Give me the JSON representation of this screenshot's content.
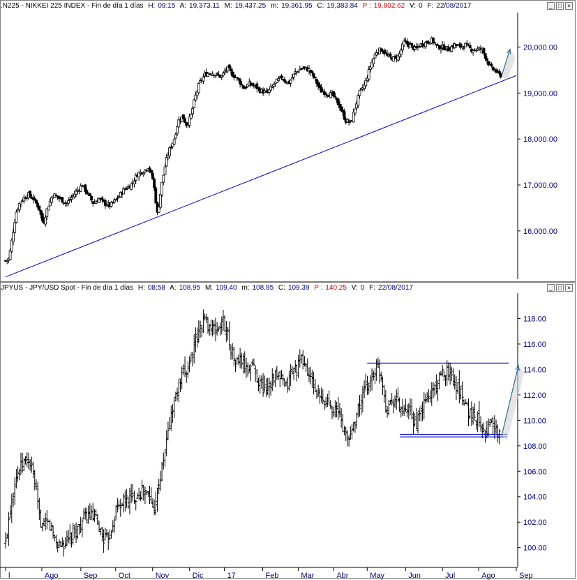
{
  "top_panel": {
    "title": ".N225 - NIKKEI 225 INDEX - Fin de día 1 días",
    "h_label": "H:",
    "h_value": "09:15",
    "a_label": "A:",
    "a_value": "19,373.11",
    "m_label": "M:",
    "m_value": "19,437.25",
    "lo_label": "m:",
    "lo_value": "19,361.95",
    "c_label": "C:",
    "c_value": "19,383.84",
    "p_label": "P :",
    "p_value": "19,802.62",
    "v_label": "V:",
    "v_value": "0",
    "f_label": "F:",
    "f_value": "22/08/2017"
  },
  "bottom_panel": {
    "title": "JPYUS - JPY/USD Spot - Fin de día 1 días",
    "h_label": "H:",
    "h_value": "08:58",
    "a_label": "A:",
    "a_value": "108.95",
    "m_label": "M:",
    "m_value": "109.40",
    "lo_label": "m:",
    "lo_value": "108.85",
    "c_label": "C:",
    "c_value": "109.39",
    "p_label": "P :",
    "p_value": "140.25",
    "v_label": "V:",
    "v_value": "0",
    "f_label": "F:",
    "f_value": "22/08/2017"
  },
  "window_buttons": {
    "minimize": "_",
    "maximize": "□",
    "close": "×"
  },
  "colors": {
    "axis_text": "#000080",
    "trend_line": "#0000c0",
    "arrow": "#2f6f8f",
    "candles": "#000000",
    "price_p": "#e00000"
  },
  "chart_data": [
    {
      "type": "candlestick",
      "title": ".N225 - NIKKEI 225 INDEX",
      "y_ticks": [
        16000,
        17000,
        18000,
        19000,
        20000
      ],
      "y_tick_labels": [
        "16,000.00",
        "17,000.00",
        "18,000.00",
        "19,000.00",
        "20,000.00"
      ],
      "ylim": [
        14950,
        20750
      ],
      "x_tick_labels": [
        "l",
        "Ago",
        "Sep",
        "Oct",
        "Nov",
        "Dic",
        "17",
        "Feb",
        "Mar",
        "Abr",
        "May",
        "Jun",
        "Jul",
        "Ago",
        "Sep"
      ],
      "x_ticks": [
        0,
        52,
        108,
        158,
        211,
        264,
        314,
        369,
        420,
        471,
        519,
        574,
        627,
        679,
        733
      ],
      "close_path": [
        [
          0,
          15350
        ],
        [
          5,
          15400
        ],
        [
          10,
          15900
        ],
        [
          15,
          16400
        ],
        [
          20,
          16600
        ],
        [
          25,
          16700
        ],
        [
          32,
          16800
        ],
        [
          40,
          16700
        ],
        [
          48,
          16500
        ],
        [
          54,
          16150
        ],
        [
          60,
          16500
        ],
        [
          68,
          16800
        ],
        [
          78,
          16700
        ],
        [
          88,
          16600
        ],
        [
          96,
          16750
        ],
        [
          104,
          16900
        ],
        [
          110,
          17000
        ],
        [
          118,
          16800
        ],
        [
          126,
          16600
        ],
        [
          134,
          16700
        ],
        [
          142,
          16600
        ],
        [
          150,
          16550
        ],
        [
          160,
          16700
        ],
        [
          170,
          16900
        ],
        [
          180,
          17000
        ],
        [
          190,
          17250
        ],
        [
          198,
          17300
        ],
        [
          205,
          17400
        ],
        [
          212,
          17100
        ],
        [
          218,
          16350
        ],
        [
          224,
          17000
        ],
        [
          230,
          17500
        ],
        [
          236,
          17800
        ],
        [
          242,
          18000
        ],
        [
          248,
          18400
        ],
        [
          254,
          18500
        ],
        [
          260,
          18300
        ],
        [
          266,
          18500
        ],
        [
          272,
          18900
        ],
        [
          278,
          19200
        ],
        [
          286,
          19400
        ],
        [
          294,
          19450
        ],
        [
          302,
          19400
        ],
        [
          310,
          19350
        ],
        [
          318,
          19550
        ],
        [
          326,
          19400
        ],
        [
          334,
          19300
        ],
        [
          342,
          19100
        ],
        [
          350,
          19200
        ],
        [
          358,
          19150
        ],
        [
          366,
          19050
        ],
        [
          376,
          19000
        ],
        [
          386,
          19200
        ],
        [
          396,
          19350
        ],
        [
          406,
          19200
        ],
        [
          416,
          19450
        ],
        [
          426,
          19550
        ],
        [
          436,
          19500
        ],
        [
          444,
          19300
        ],
        [
          452,
          19050
        ],
        [
          460,
          19000
        ],
        [
          470,
          18950
        ],
        [
          480,
          18700
        ],
        [
          488,
          18400
        ],
        [
          496,
          18350
        ],
        [
          502,
          18700
        ],
        [
          508,
          19000
        ],
        [
          516,
          19200
        ],
        [
          524,
          19600
        ],
        [
          532,
          19900
        ],
        [
          540,
          19950
        ],
        [
          548,
          19800
        ],
        [
          556,
          19750
        ],
        [
          564,
          19800
        ],
        [
          572,
          20100
        ],
        [
          580,
          20050
        ],
        [
          588,
          19950
        ],
        [
          596,
          20050
        ],
        [
          604,
          20100
        ],
        [
          612,
          20150
        ],
        [
          620,
          20000
        ],
        [
          628,
          20000
        ],
        [
          636,
          19950
        ],
        [
          644,
          20050
        ],
        [
          652,
          20000
        ],
        [
          660,
          20050
        ],
        [
          668,
          19950
        ],
        [
          676,
          19950
        ],
        [
          684,
          19950
        ],
        [
          690,
          19750
        ],
        [
          696,
          19550
        ],
        [
          702,
          19500
        ],
        [
          708,
          19400
        ],
        [
          712,
          19380
        ]
      ],
      "trend_line": [
        [
          0,
          15000
        ],
        [
          733,
          19380
        ]
      ],
      "arrow": [
        [
          712,
          19380
        ],
        [
          724,
          19950
        ]
      ]
    },
    {
      "type": "ohlc",
      "title": "JPYUS - JPY/USD Spot",
      "y_ticks": [
        100,
        102,
        104,
        106,
        108,
        110,
        112,
        114,
        116,
        118
      ],
      "y_tick_labels": [
        "100.00",
        "102.00",
        "104.00",
        "106.00",
        "108.00",
        "110.00",
        "112.00",
        "114.00",
        "116.00",
        "118.00"
      ],
      "ylim": [
        98.5,
        120.0
      ],
      "x_tick_labels": [
        "l",
        "Ago",
        "Sep",
        "Oct",
        "Nov",
        "Dic",
        "17",
        "Feb",
        "Mar",
        "Abr",
        "May",
        "Jun",
        "Jul",
        "Ago",
        "Sep"
      ],
      "x_ticks": [
        0,
        52,
        108,
        158,
        211,
        264,
        314,
        369,
        420,
        471,
        519,
        574,
        627,
        679,
        733
      ],
      "close_path": [
        [
          0,
          100.3
        ],
        [
          6,
          103.0
        ],
        [
          12,
          105.0
        ],
        [
          18,
          106.0
        ],
        [
          24,
          106.5
        ],
        [
          30,
          107.0
        ],
        [
          36,
          106.5
        ],
        [
          42,
          105.0
        ],
        [
          48,
          102.5
        ],
        [
          54,
          101.5
        ],
        [
          60,
          102.0
        ],
        [
          66,
          101.5
        ],
        [
          72,
          100.5
        ],
        [
          80,
          100.2
        ],
        [
          88,
          100.4
        ],
        [
          96,
          101.0
        ],
        [
          104,
          101.5
        ],
        [
          112,
          102.3
        ],
        [
          120,
          102.5
        ],
        [
          128,
          102.3
        ],
        [
          134,
          101.6
        ],
        [
          140,
          100.8
        ],
        [
          146,
          100.5
        ],
        [
          152,
          101.5
        ],
        [
          158,
          103.0
        ],
        [
          166,
          103.5
        ],
        [
          174,
          103.8
        ],
        [
          182,
          104.0
        ],
        [
          190,
          104.2
        ],
        [
          198,
          104.5
        ],
        [
          206,
          104.0
        ],
        [
          212,
          103.0
        ],
        [
          218,
          104.5
        ],
        [
          224,
          106.0
        ],
        [
          230,
          108.0
        ],
        [
          236,
          110.0
        ],
        [
          242,
          111.5
        ],
        [
          248,
          112.5
        ],
        [
          254,
          113.5
        ],
        [
          260,
          114.0
        ],
        [
          266,
          115.0
        ],
        [
          272,
          116.0
        ],
        [
          278,
          117.0
        ],
        [
          284,
          118.0
        ],
        [
          292,
          117.5
        ],
        [
          300,
          117.0
        ],
        [
          306,
          117.3
        ],
        [
          312,
          117.8
        ],
        [
          318,
          117.0
        ],
        [
          324,
          115.5
        ],
        [
          330,
          114.5
        ],
        [
          338,
          114.8
        ],
        [
          346,
          113.8
        ],
        [
          354,
          114.5
        ],
        [
          362,
          113.2
        ],
        [
          370,
          112.5
        ],
        [
          378,
          112.8
        ],
        [
          386,
          113.5
        ],
        [
          394,
          113.2
        ],
        [
          402,
          112.5
        ],
        [
          410,
          113.8
        ],
        [
          418,
          114.2
        ],
        [
          426,
          114.8
        ],
        [
          432,
          114.0
        ],
        [
          440,
          113.0
        ],
        [
          448,
          112.0
        ],
        [
          456,
          111.3
        ],
        [
          464,
          111.5
        ],
        [
          472,
          110.8
        ],
        [
          480,
          110.5
        ],
        [
          486,
          109.0
        ],
        [
          492,
          108.5
        ],
        [
          498,
          109.5
        ],
        [
          504,
          110.5
        ],
        [
          510,
          111.5
        ],
        [
          516,
          112.5
        ],
        [
          522,
          113.0
        ],
        [
          528,
          113.8
        ],
        [
          534,
          114.2
        ],
        [
          540,
          113.5
        ],
        [
          546,
          111.0
        ],
        [
          552,
          111.5
        ],
        [
          560,
          111.8
        ],
        [
          566,
          111.0
        ],
        [
          572,
          110.5
        ],
        [
          578,
          110.8
        ],
        [
          584,
          110.0
        ],
        [
          590,
          109.8
        ],
        [
          596,
          110.5
        ],
        [
          602,
          111.5
        ],
        [
          608,
          111.8
        ],
        [
          614,
          112.5
        ],
        [
          620,
          113.0
        ],
        [
          626,
          113.5
        ],
        [
          632,
          114.0
        ],
        [
          638,
          113.8
        ],
        [
          644,
          113.0
        ],
        [
          650,
          112.5
        ],
        [
          656,
          112.0
        ],
        [
          662,
          111.0
        ],
        [
          668,
          110.5
        ],
        [
          674,
          110.3
        ],
        [
          680,
          110.0
        ],
        [
          686,
          109.5
        ],
        [
          692,
          109.3
        ],
        [
          698,
          110.0
        ],
        [
          704,
          109.0
        ],
        [
          710,
          108.8
        ]
      ],
      "resistance": [
        [
          519,
          114.5
        ],
        [
          722,
          114.5
        ]
      ],
      "support": [
        [
          566,
          108.9
        ],
        [
          720,
          108.9
        ]
      ],
      "support2": [
        [
          566,
          108.7
        ],
        [
          720,
          108.7
        ]
      ],
      "arrow": [
        [
          712,
          108.8
        ],
        [
          736,
          114.3
        ]
      ]
    }
  ]
}
